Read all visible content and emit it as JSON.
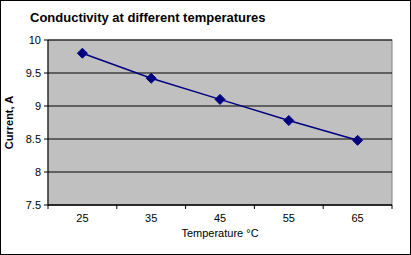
{
  "chart_data": {
    "type": "line",
    "title": "Conductivity at different temperatures",
    "x_label": "Temperature °C",
    "y_label": "Current, A",
    "categories": [
      "25",
      "35",
      "45",
      "55",
      "65"
    ],
    "values": [
      9.8,
      9.42,
      9.1,
      8.78,
      8.48
    ],
    "color": "#000080",
    "marker": "diamond",
    "line_style": "solid",
    "ylim": [
      7.5,
      10
    ],
    "yticks": [
      7.5,
      8,
      8.5,
      9,
      9.5,
      10
    ],
    "grid": true
  }
}
